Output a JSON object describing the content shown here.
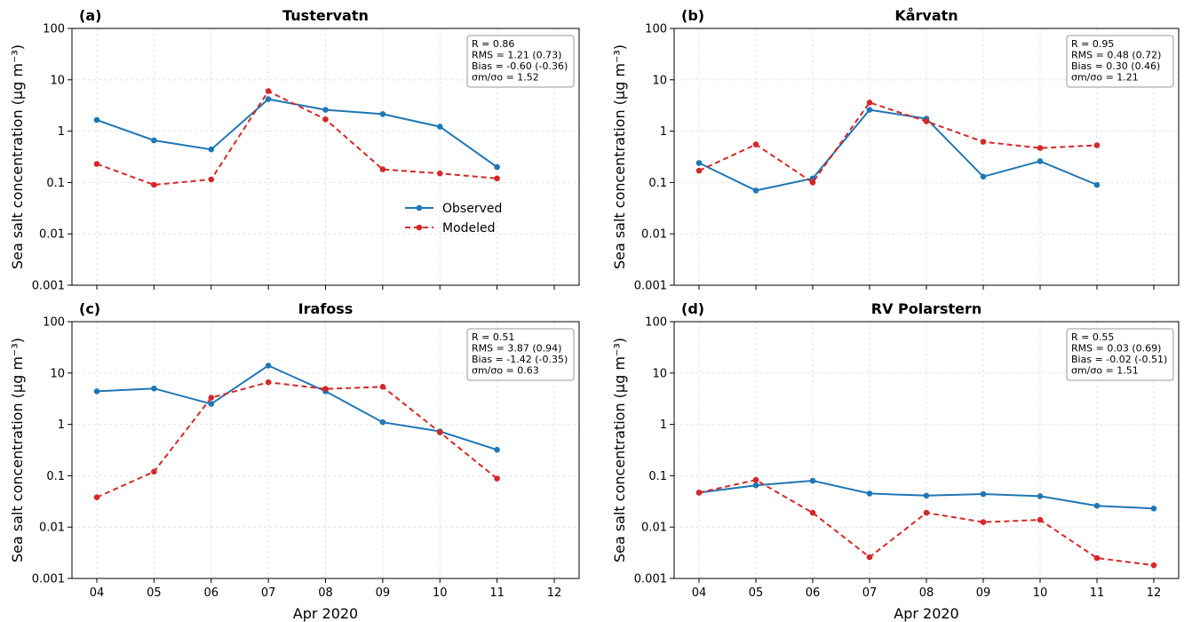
{
  "colors": {
    "observed": "#1f77b4",
    "modeled": "#d62728",
    "grid": "#dcdcdc"
  },
  "legend": {
    "observed": "Observed",
    "modeled": "Modeled",
    "placement": "inside panel (a), center-right"
  },
  "x_axis_label": "Apr 2020",
  "y_axis_label": "Sea salt concentration (μg m⁻³)",
  "chart_data": [
    {
      "type": "line",
      "panel": "(a)",
      "title": "Tustervatn",
      "x": [
        "04",
        "05",
        "06",
        "07",
        "08",
        "09",
        "10",
        "11",
        "12"
      ],
      "xlim": [
        "04",
        "12"
      ],
      "ylim": [
        0.001,
        100
      ],
      "yscale": "log",
      "yticks": [
        "0.001",
        "0.01",
        "0.1",
        "1",
        "10",
        "100"
      ],
      "grid": true,
      "x_ticklabels_shown": false,
      "series": [
        {
          "name": "Observed",
          "style": "solid",
          "values": [
            1.65,
            0.66,
            0.44,
            4.2,
            2.6,
            2.15,
            1.22,
            0.2,
            null
          ]
        },
        {
          "name": "Modeled",
          "style": "dashed",
          "values": [
            0.23,
            0.09,
            0.115,
            6.0,
            1.7,
            0.18,
            0.15,
            0.12,
            null
          ]
        }
      ],
      "stats": [
        "R = 0.86",
        "RMS = 1.21 (0.73)",
        "Bias = -0.60 (-0.36)",
        "σm/σo = 1.52"
      ]
    },
    {
      "type": "line",
      "panel": "(b)",
      "title": "Kårvatn",
      "x": [
        "04",
        "05",
        "06",
        "07",
        "08",
        "09",
        "10",
        "11",
        "12"
      ],
      "xlim": [
        "04",
        "12"
      ],
      "ylim": [
        0.001,
        100
      ],
      "yscale": "log",
      "yticks": [
        "0.001",
        "0.01",
        "0.1",
        "1",
        "10",
        "100"
      ],
      "grid": true,
      "x_ticklabels_shown": false,
      "series": [
        {
          "name": "Observed",
          "style": "solid",
          "values": [
            0.24,
            0.07,
            0.12,
            2.6,
            1.75,
            0.13,
            0.26,
            0.09,
            null
          ]
        },
        {
          "name": "Modeled",
          "style": "dashed",
          "values": [
            0.17,
            0.55,
            0.1,
            3.6,
            1.55,
            0.62,
            0.47,
            0.53,
            null
          ]
        }
      ],
      "stats": [
        "R = 0.95",
        "RMS = 0.48 (0.72)",
        "Bias = 0.30 (0.46)",
        "σm/σo = 1.21"
      ]
    },
    {
      "type": "line",
      "panel": "(c)",
      "title": "Irafoss",
      "x": [
        "04",
        "05",
        "06",
        "07",
        "08",
        "09",
        "10",
        "11",
        "12"
      ],
      "xlim": [
        "04",
        "12"
      ],
      "ylim": [
        0.001,
        100
      ],
      "yscale": "log",
      "yticks": [
        "0.001",
        "0.01",
        "0.1",
        "1",
        "10",
        "100"
      ],
      "grid": true,
      "x_ticklabels_shown": true,
      "series": [
        {
          "name": "Observed",
          "style": "solid",
          "values": [
            4.4,
            5.0,
            2.5,
            14.0,
            4.4,
            1.1,
            0.73,
            0.32,
            null
          ]
        },
        {
          "name": "Modeled",
          "style": "dashed",
          "values": [
            0.038,
            0.12,
            3.3,
            6.6,
            4.9,
            5.4,
            0.7,
            0.088,
            null
          ]
        }
      ],
      "stats": [
        "R = 0.51",
        "RMS = 3.87 (0.94)",
        "Bias = -1.42 (-0.35)",
        "σm/σo = 0.63"
      ]
    },
    {
      "type": "line",
      "panel": "(d)",
      "title": "RV Polarstern",
      "x": [
        "04",
        "05",
        "06",
        "07",
        "08",
        "09",
        "10",
        "11",
        "12"
      ],
      "xlim": [
        "04",
        "12"
      ],
      "ylim": [
        0.001,
        100
      ],
      "yscale": "log",
      "yticks": [
        "0.001",
        "0.01",
        "0.1",
        "1",
        "10",
        "100"
      ],
      "grid": true,
      "x_ticklabels_shown": true,
      "series": [
        {
          "name": "Observed",
          "style": "solid",
          "values": [
            0.047,
            0.065,
            0.08,
            0.045,
            0.041,
            0.044,
            0.04,
            0.026,
            0.023
          ]
        },
        {
          "name": "Modeled",
          "style": "dashed",
          "values": [
            0.047,
            0.083,
            0.019,
            0.0026,
            0.019,
            0.0125,
            0.0138,
            0.0025,
            0.0018
          ]
        }
      ],
      "stats": [
        "R = 0.55",
        "RMS = 0.03 (0.69)",
        "Bias = -0.02 (-0.51)",
        "σm/σo = 1.51"
      ]
    }
  ]
}
